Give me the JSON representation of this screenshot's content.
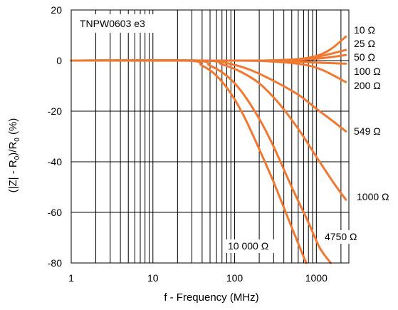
{
  "chart_data": {
    "type": "line",
    "annotation": "TNPW0603 e3",
    "xlabel": "f - Frequency (MHz)",
    "ylabel_parts": {
      "a": "(|Z| - R",
      "b": "0",
      "c": ")/R",
      "d": "0",
      "e": " (%)"
    },
    "xscale": "log",
    "xlim": [
      1,
      2500
    ],
    "ylim": [
      -80,
      20
    ],
    "x_ticks": [
      1,
      10,
      100,
      1000
    ],
    "x_tick_labels": [
      "1",
      "10",
      "100",
      "1000"
    ],
    "y_ticks": [
      20,
      0,
      -20,
      -40,
      -60,
      -80
    ],
    "y_tick_labels": [
      "20",
      "0",
      "-20",
      "-40",
      "-60",
      "-80"
    ],
    "grid": true,
    "line_color": "#f07830",
    "series": [
      {
        "name": "10 Ω",
        "points": [
          [
            1,
            0
          ],
          [
            100,
            0
          ],
          [
            300,
            0.1
          ],
          [
            600,
            0.6
          ],
          [
            1000,
            1.8
          ],
          [
            1500,
            4.5
          ],
          [
            2300,
            9.5
          ]
        ]
      },
      {
        "name": "25 Ω",
        "points": [
          [
            1,
            0
          ],
          [
            150,
            0
          ],
          [
            400,
            0.2
          ],
          [
            800,
            0.9
          ],
          [
            1300,
            2.2
          ],
          [
            2300,
            4.2
          ]
        ]
      },
      {
        "name": "50 Ω",
        "points": [
          [
            1,
            0
          ],
          [
            200,
            0
          ],
          [
            600,
            0.3
          ],
          [
            1200,
            1.0
          ],
          [
            2300,
            2.2
          ]
        ]
      },
      {
        "name": "100 Ω",
        "points": [
          [
            1,
            0
          ],
          [
            150,
            0
          ],
          [
            500,
            -0.3
          ],
          [
            1000,
            -0.8
          ],
          [
            2300,
            -1.2
          ]
        ]
      },
      {
        "name": "200 Ω",
        "points": [
          [
            1,
            0
          ],
          [
            100,
            0
          ],
          [
            300,
            -0.4
          ],
          [
            700,
            -1.6
          ],
          [
            1200,
            -3.8
          ],
          [
            2300,
            -8.5
          ]
        ]
      },
      {
        "name": "549 Ω",
        "points": [
          [
            1,
            0
          ],
          [
            40,
            0
          ],
          [
            80,
            -1
          ],
          [
            150,
            -3.5
          ],
          [
            300,
            -8
          ],
          [
            600,
            -13.5
          ],
          [
            1000,
            -19
          ],
          [
            1600,
            -24
          ],
          [
            2300,
            -28
          ]
        ]
      },
      {
        "name": "1000 Ω",
        "points": [
          [
            1,
            0
          ],
          [
            40,
            0
          ],
          [
            70,
            -1.5
          ],
          [
            120,
            -4.5
          ],
          [
            200,
            -9
          ],
          [
            350,
            -17
          ],
          [
            600,
            -27
          ],
          [
            1000,
            -38
          ],
          [
            1600,
            -48
          ],
          [
            2300,
            -55
          ]
        ]
      },
      {
        "name": "4750 Ω",
        "points": [
          [
            1,
            0
          ],
          [
            30,
            0
          ],
          [
            50,
            -2
          ],
          [
            80,
            -6
          ],
          [
            120,
            -12
          ],
          [
            200,
            -23
          ],
          [
            300,
            -34
          ],
          [
            500,
            -50
          ],
          [
            800,
            -64
          ],
          [
            1100,
            -74
          ],
          [
            1500,
            -80
          ]
        ]
      },
      {
        "name": "10 000 Ω",
        "points": [
          [
            1,
            0
          ],
          [
            25,
            0
          ],
          [
            40,
            -2
          ],
          [
            60,
            -6
          ],
          [
            90,
            -13
          ],
          [
            130,
            -22
          ],
          [
            200,
            -35
          ],
          [
            300,
            -48
          ],
          [
            500,
            -66
          ],
          [
            750,
            -80
          ]
        ]
      }
    ]
  }
}
